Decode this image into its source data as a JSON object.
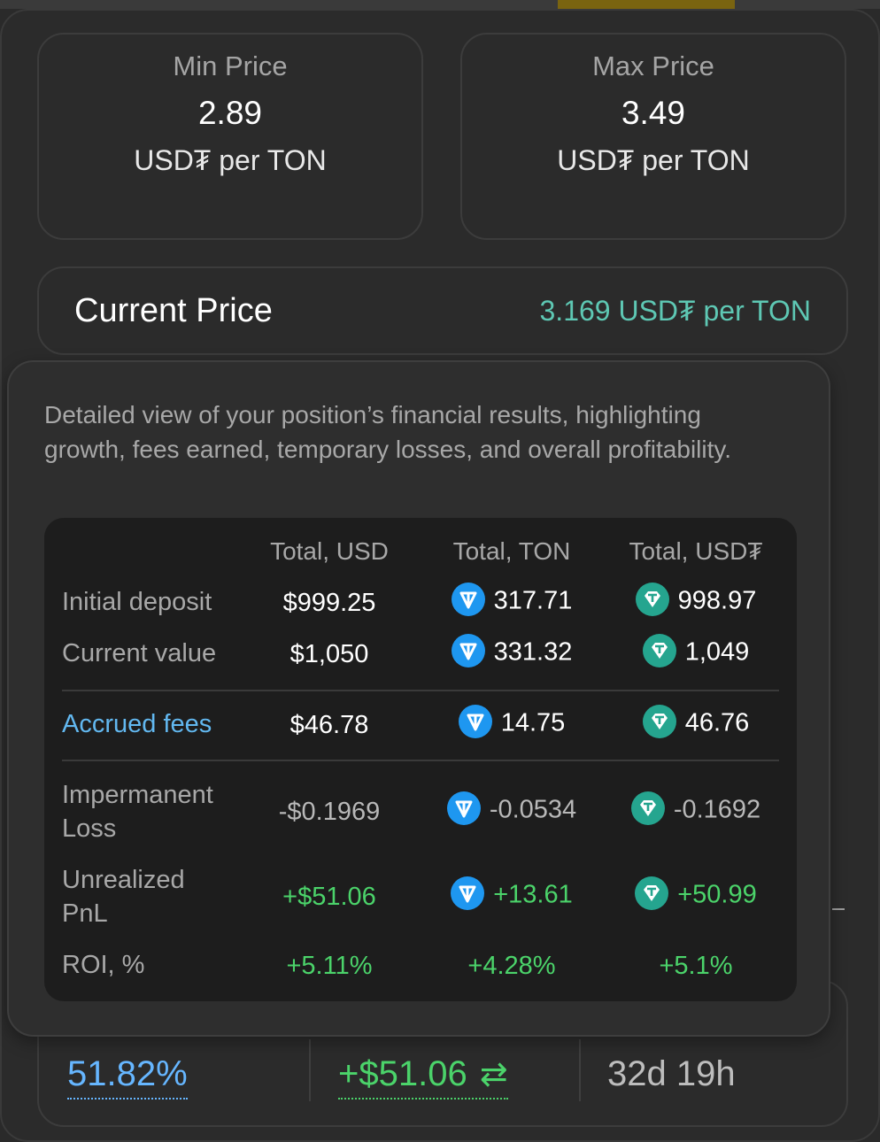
{
  "min_price": {
    "label": "Min Price",
    "value": "2.89",
    "unit": "USD₮ per TON"
  },
  "max_price": {
    "label": "Max Price",
    "value": "3.49",
    "unit": "USD₮ per TON"
  },
  "current_price": {
    "label": "Current Price",
    "value": "3.169 USD₮ per TON"
  },
  "tooltip": {
    "description": "Detailed view of your position’s financial results, highlighting growth, fees earned, temporary losses, and overall profitability.",
    "headers": [
      "Total, USD",
      "Total, TON",
      "Total, USD₮"
    ],
    "rows": {
      "initial_deposit": {
        "label": "Initial deposit",
        "usd": "$999.25",
        "ton": "317.71",
        "usdt": "998.97"
      },
      "current_value": {
        "label": "Current value",
        "usd": "$1,050",
        "ton": "331.32",
        "usdt": "1,049"
      },
      "accrued_fees": {
        "label": "Accrued fees",
        "usd": "$46.78",
        "ton": "14.75",
        "usdt": "46.76"
      },
      "impermanent_loss": {
        "label": "Impermanent Loss",
        "usd": "-$0.1969",
        "ton": "-0.0534",
        "usdt": "-0.1692"
      },
      "unrealized_pnl": {
        "label": "Unrealized PnL",
        "usd": "+$51.06",
        "ton": "+13.61",
        "usdt": "+50.99"
      },
      "roi": {
        "label": "ROI, %",
        "usd": "+5.11%",
        "ton": "+4.28%",
        "usdt": "+5.1%"
      }
    }
  },
  "stats": {
    "apr": "51.82%",
    "pnl": "+$51.06",
    "pnl_icon": "swap-arrows-icon",
    "age": "32d 19h"
  },
  "colors": {
    "accent_teal": "#5ec8b4",
    "accent_blue": "#62b8f0",
    "positive_green": "#4bd36a",
    "ton_blue": "#1e97f0",
    "usdt_teal": "#25a58f"
  }
}
